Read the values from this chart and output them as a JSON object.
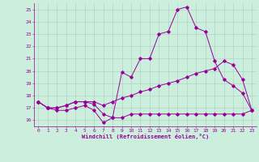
{
  "xlabel": "Windchill (Refroidissement éolien,°C)",
  "background_color": "#cceedd",
  "line_color": "#990099",
  "xlim": [
    -0.5,
    23.5
  ],
  "ylim": [
    15.5,
    25.5
  ],
  "yticks": [
    16,
    17,
    18,
    19,
    20,
    21,
    22,
    23,
    24,
    25
  ],
  "xticks": [
    0,
    1,
    2,
    3,
    4,
    5,
    6,
    7,
    8,
    9,
    10,
    11,
    12,
    13,
    14,
    15,
    16,
    17,
    18,
    19,
    20,
    21,
    22,
    23
  ],
  "line1_x": [
    0,
    1,
    2,
    3,
    4,
    5,
    6,
    7,
    8,
    9,
    10,
    11,
    12,
    13,
    14,
    15,
    16,
    17,
    18,
    19,
    20,
    21,
    22,
    23
  ],
  "line1_y": [
    17.5,
    17.0,
    16.8,
    16.8,
    17.0,
    17.2,
    16.8,
    15.8,
    16.2,
    19.9,
    19.5,
    21.0,
    21.0,
    23.0,
    23.2,
    25.0,
    25.2,
    23.5,
    23.2,
    20.8,
    19.3,
    18.8,
    18.2,
    16.8
  ],
  "line2_x": [
    0,
    1,
    2,
    3,
    4,
    5,
    6,
    7,
    8,
    9,
    10,
    11,
    12,
    13,
    14,
    15,
    16,
    17,
    18,
    19,
    20,
    21,
    22,
    23
  ],
  "line2_y": [
    17.5,
    17.0,
    17.0,
    17.2,
    17.5,
    17.5,
    17.5,
    17.2,
    17.5,
    17.8,
    18.0,
    18.3,
    18.5,
    18.8,
    19.0,
    19.2,
    19.5,
    19.8,
    20.0,
    20.2,
    20.8,
    20.5,
    19.3,
    16.8
  ],
  "line3_x": [
    0,
    1,
    2,
    3,
    4,
    5,
    6,
    7,
    8,
    9,
    10,
    11,
    12,
    13,
    14,
    15,
    16,
    17,
    18,
    19,
    20,
    21,
    22,
    23
  ],
  "line3_y": [
    17.5,
    17.0,
    17.0,
    17.2,
    17.5,
    17.5,
    17.3,
    16.5,
    16.2,
    16.2,
    16.5,
    16.5,
    16.5,
    16.5,
    16.5,
    16.5,
    16.5,
    16.5,
    16.5,
    16.5,
    16.5,
    16.5,
    16.5,
    16.8
  ],
  "grid_color": "#aaccbb",
  "xlabel_fontsize": 5.0,
  "tick_fontsize": 4.5,
  "linewidth": 0.7,
  "markersize": 1.8
}
